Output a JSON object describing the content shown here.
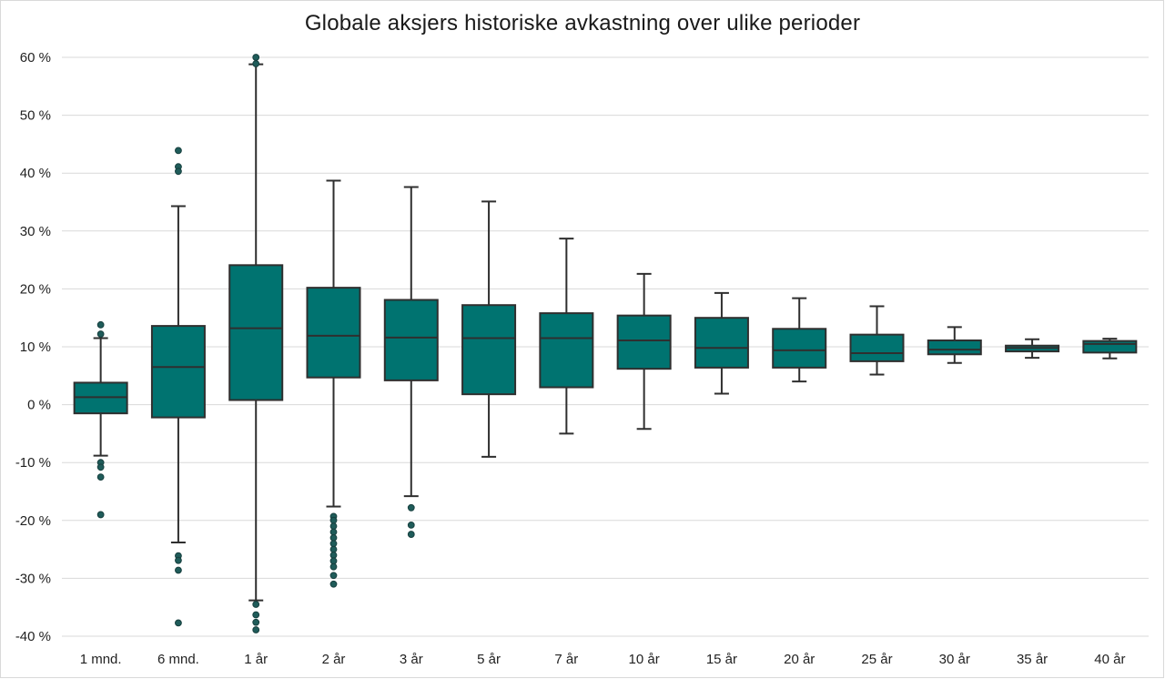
{
  "chart_data": {
    "type": "boxplot",
    "title": "Globale aksjers historiske avkastning over ulike perioder",
    "xlabel": "",
    "ylabel": "",
    "ylim": [
      -40,
      60
    ],
    "yticks": [
      60,
      50,
      40,
      30,
      20,
      10,
      0,
      -10,
      -20,
      -30,
      -40
    ],
    "ytick_labels": [
      "60 %",
      "50 %",
      "40 %",
      "30 %",
      "20 %",
      "10 %",
      "0 %",
      "-10 %",
      "-20 %",
      "-30 %",
      "-40 %"
    ],
    "grid": true,
    "legend": "none",
    "colors": {
      "box_fill": "#007370",
      "box_stroke": "#2f2f2f",
      "outlier": "#1f5c5a"
    },
    "categories": [
      "1 mnd.",
      "6 mnd.",
      "1 år",
      "2 år",
      "3 år",
      "5 år",
      "7 år",
      "10 år",
      "15 år",
      "20 år",
      "25 år",
      "30 år",
      "35 år",
      "40 år"
    ],
    "boxes": [
      {
        "whisker_low": -8.8,
        "q1": -1.5,
        "median": 1.3,
        "q3": 3.8,
        "whisker_high": 11.5,
        "outliers": [
          13.8,
          12.2,
          -10.0,
          -10.8,
          -12.5,
          -19.0
        ]
      },
      {
        "whisker_low": -23.8,
        "q1": -2.2,
        "median": 6.5,
        "q3": 13.6,
        "whisker_high": 34.3,
        "outliers": [
          43.9,
          41.1,
          40.3,
          -26.1,
          -26.9,
          -28.6,
          -37.7
        ]
      },
      {
        "whisker_low": -33.8,
        "q1": 0.8,
        "median": 13.2,
        "q3": 24.1,
        "whisker_high": 58.8,
        "outliers": [
          60.0,
          58.9,
          -34.5,
          -36.3,
          -37.6,
          -38.9
        ]
      },
      {
        "whisker_low": -17.6,
        "q1": 4.7,
        "median": 11.9,
        "q3": 20.2,
        "whisker_high": 38.7,
        "outliers": [
          -19.3,
          -20.0,
          -21.0,
          -22.0,
          -23.0,
          -24.0,
          -25.0,
          -26.0,
          -27.0,
          -28.0,
          -29.5,
          -31.0
        ]
      },
      {
        "whisker_low": -15.8,
        "q1": 4.2,
        "median": 11.6,
        "q3": 18.1,
        "whisker_high": 37.6,
        "outliers": [
          -17.8,
          -20.8,
          -22.4
        ]
      },
      {
        "whisker_low": -9.0,
        "q1": 1.8,
        "median": 11.5,
        "q3": 17.2,
        "whisker_high": 35.1,
        "outliers": []
      },
      {
        "whisker_low": -5.0,
        "q1": 3.0,
        "median": 11.5,
        "q3": 15.8,
        "whisker_high": 28.7,
        "outliers": []
      },
      {
        "whisker_low": -4.2,
        "q1": 6.2,
        "median": 11.1,
        "q3": 15.4,
        "whisker_high": 22.6,
        "outliers": []
      },
      {
        "whisker_low": 1.9,
        "q1": 6.4,
        "median": 9.8,
        "q3": 15.0,
        "whisker_high": 19.3,
        "outliers": []
      },
      {
        "whisker_low": 4.0,
        "q1": 6.4,
        "median": 9.4,
        "q3": 13.1,
        "whisker_high": 18.4,
        "outliers": []
      },
      {
        "whisker_low": 5.2,
        "q1": 7.5,
        "median": 8.9,
        "q3": 12.1,
        "whisker_high": 17.0,
        "outliers": []
      },
      {
        "whisker_low": 7.2,
        "q1": 8.7,
        "median": 9.5,
        "q3": 11.1,
        "whisker_high": 13.4,
        "outliers": []
      },
      {
        "whisker_low": 8.1,
        "q1": 9.2,
        "median": 9.8,
        "q3": 10.2,
        "whisker_high": 11.3,
        "outliers": []
      },
      {
        "whisker_low": 8.0,
        "q1": 9.0,
        "median": 10.5,
        "q3": 11.0,
        "whisker_high": 11.4,
        "outliers": []
      }
    ]
  }
}
